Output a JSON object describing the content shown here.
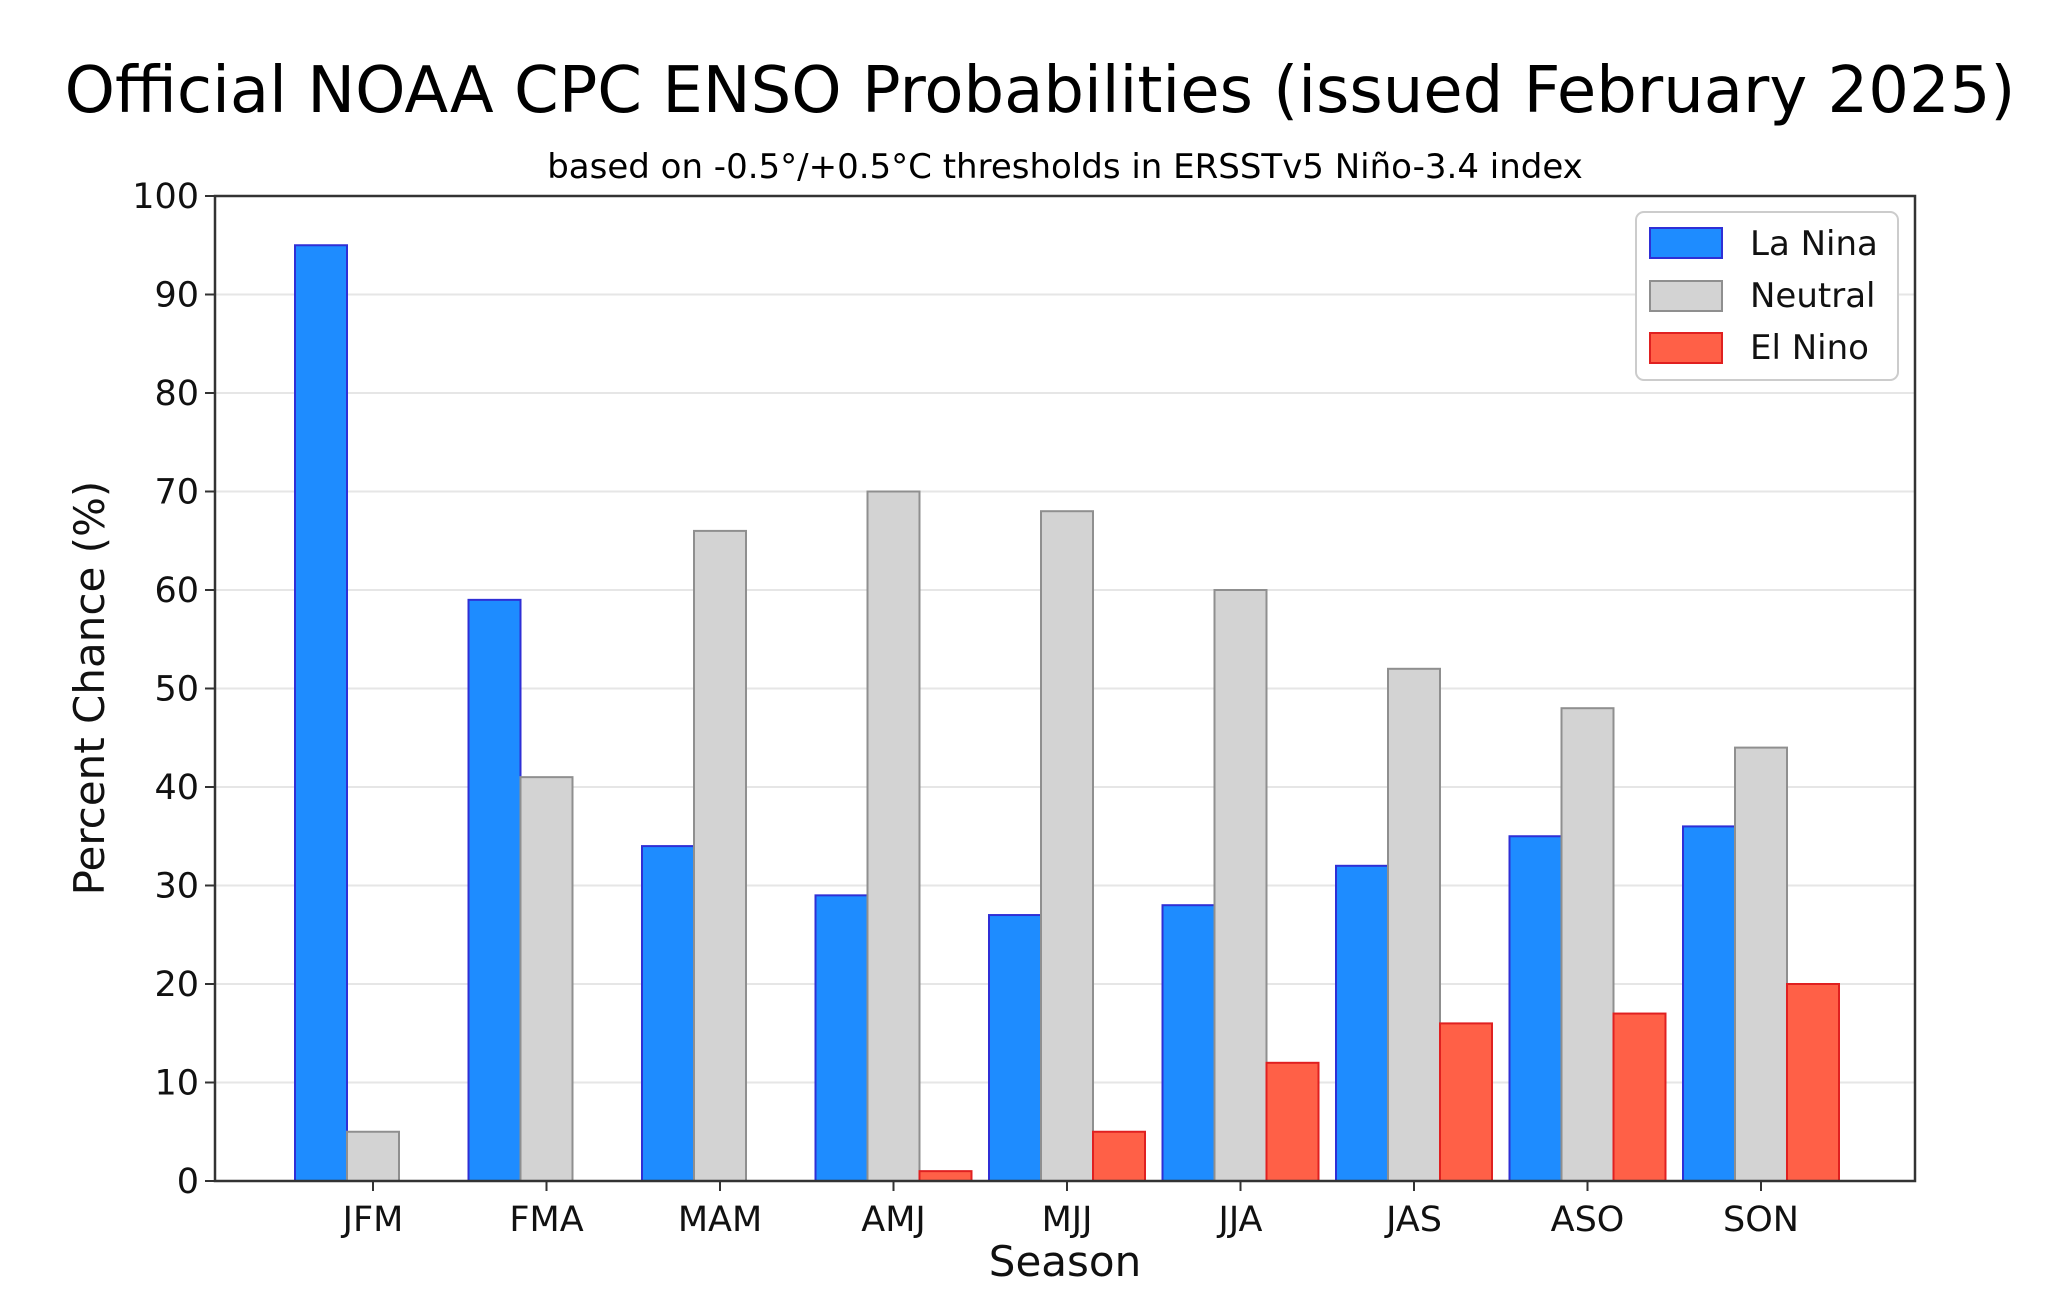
{
  "chart_data": {
    "type": "bar",
    "title": "Official NOAA CPC ENSO Probabilities (issued February 2025)",
    "subtitle": "based on -0.5°/+0.5°C thresholds in ERSSTv5 Niño-3.4 index",
    "xlabel": "Season",
    "ylabel": "Percent Chance (%)",
    "ylim": [
      0,
      100
    ],
    "yticks": [
      0,
      10,
      20,
      30,
      40,
      50,
      60,
      70,
      80,
      90,
      100
    ],
    "grid": "horizontal",
    "legend_position": "top-right",
    "categories": [
      "JFM",
      "FMA",
      "MAM",
      "AMJ",
      "MJJ",
      "JJA",
      "JAS",
      "ASO",
      "SON"
    ],
    "series": [
      {
        "name": "La Nina",
        "color": "#1e8cff",
        "edge": "#2f2fd6",
        "values": [
          95,
          59,
          34,
          29,
          27,
          28,
          32,
          35,
          36
        ]
      },
      {
        "name": "Neutral",
        "color": "#d3d3d3",
        "edge": "#8f8f8f",
        "values": [
          5,
          41,
          66,
          70,
          68,
          60,
          52,
          48,
          44
        ]
      },
      {
        "name": "El Nino",
        "color": "#ff6047",
        "edge": "#e02020",
        "values": [
          0,
          0,
          0,
          1,
          5,
          12,
          16,
          17,
          20
        ]
      }
    ]
  }
}
